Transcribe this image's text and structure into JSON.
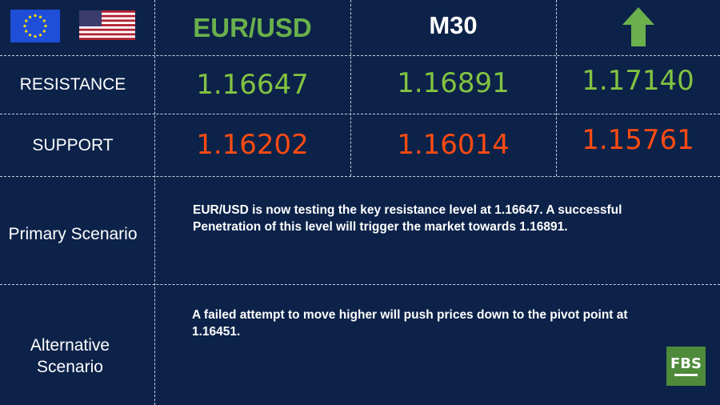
{
  "header": {
    "pair": "EUR/USD",
    "timeframe": "M30",
    "direction_icon": "arrow-up-icon",
    "flags": [
      "eu-flag-icon",
      "us-flag-icon"
    ]
  },
  "rows": {
    "resistance": {
      "label": "RESISTANCE",
      "values": [
        "1.16647",
        "1.16891",
        "1.17140"
      ]
    },
    "support": {
      "label": "SUPPORT",
      "values": [
        "1.16202",
        "1.16014",
        "1.15761"
      ]
    }
  },
  "primary": {
    "label": "Primary Scenario",
    "text": "EUR/USD is now testing the key resistance level at 1.16647. A successful Penetration of this level will trigger the market towards 1.16891."
  },
  "alternative": {
    "label": "Alternative Scenario",
    "text": "A failed attempt to move higher will push prices down to the pivot point at 1.16451."
  },
  "logo": {
    "text": "FBS"
  },
  "colors": {
    "background": "#0c2249",
    "green": "#82c341",
    "red": "#ff4b12",
    "logo": "#4e8a3a"
  }
}
